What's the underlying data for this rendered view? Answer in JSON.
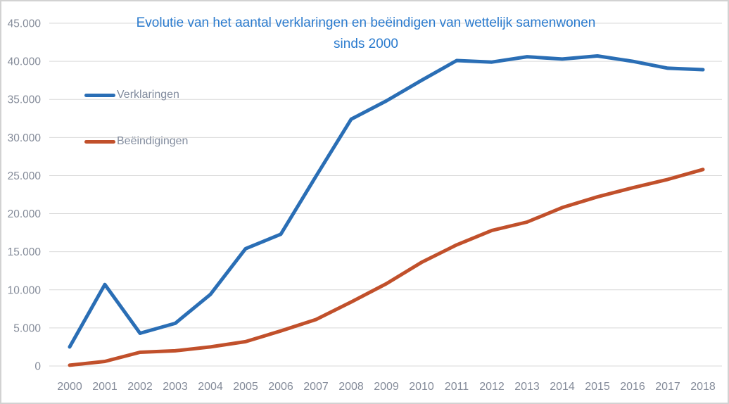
{
  "chart_data": {
    "type": "line",
    "title": "Evolutie van het aantal verklaringen en beëindigen van wettelijk samenwonen sinds 2000",
    "title_line1": "Evolutie van het aantal verklaringen en beëindigen van wettelijk samenwonen",
    "title_line2": "sinds 2000",
    "x": [
      2000,
      2001,
      2002,
      2003,
      2004,
      2005,
      2006,
      2007,
      2008,
      2009,
      2010,
      2011,
      2012,
      2013,
      2014,
      2015,
      2016,
      2017,
      2018
    ],
    "x_tick_labels": [
      "2000",
      "2001",
      "2002",
      "2003",
      "2004",
      "2005",
      "2006",
      "2007",
      "2008",
      "2009",
      "2010",
      "2011",
      "2012",
      "2013",
      "2014",
      "2015",
      "2016",
      "2017",
      "2018"
    ],
    "series": [
      {
        "name": "Verklaringen",
        "color": "#2a6eb5",
        "values": [
          2500,
          10700,
          4300,
          5600,
          9400,
          15400,
          17300,
          24900,
          32400,
          34800,
          37500,
          40100,
          39900,
          40600,
          40300,
          40700,
          40000,
          39100,
          38900
        ]
      },
      {
        "name": "Beëindigingen",
        "color": "#c1502b",
        "values": [
          100,
          600,
          1800,
          2000,
          2500,
          3200,
          4600,
          6100,
          8400,
          10800,
          13600,
          15900,
          17800,
          18900,
          20800,
          22200,
          23400,
          24500,
          25800
        ]
      }
    ],
    "ylim": [
      0,
      45000
    ],
    "ytick_step": 5000,
    "y_tick_labels": [
      "0",
      "5.000",
      "10.000",
      "15.000",
      "20.000",
      "25.000",
      "30.000",
      "35.000",
      "40.000",
      "45.000"
    ],
    "grid": true,
    "legend_position": "left-inside-stacked",
    "colors": {
      "title": "#2b7bce",
      "gridline": "#d9d9d9",
      "tick_labels": "#848b99",
      "background": "#ffffff",
      "frame_border": "#d2d2d2"
    }
  }
}
